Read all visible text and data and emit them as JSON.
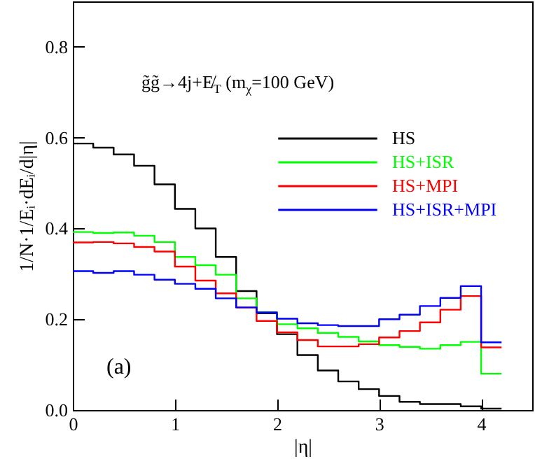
{
  "chart_data": {
    "type": "histogram",
    "xlabel": "|η|",
    "ylabel": "1/N·1/Eᵢ·dEᵢ/d|η|",
    "annotations": [
      "g̃g̃→4j+E̸$_{T}$   (m$_{χ}$=100 GeV)",
      "(a)"
    ],
    "bins": [
      0,
      0.2,
      0.4,
      0.6,
      0.8,
      1.0,
      1.2,
      1.4,
      1.6,
      1.8,
      2.0,
      2.2,
      2.4,
      2.6,
      2.8,
      3.0,
      3.2,
      3.4,
      3.6,
      3.8,
      4.0,
      4.2
    ],
    "xlim": [
      0,
      4.5
    ],
    "xticks": [
      0,
      1,
      2,
      3,
      4
    ],
    "ylim": [
      0,
      0.9
    ],
    "yticks": [
      {
        "value": 0,
        "label": "0.0"
      },
      0.2,
      0.4,
      0.6,
      0.8
    ],
    "legend": "top right",
    "line_style": "solid",
    "series": [
      {
        "name": "HS",
        "color": "#000000",
        "values": [
          0.587,
          0.578,
          0.563,
          0.538,
          0.497,
          0.443,
          0.4,
          0.337,
          0.262,
          0.213,
          0.167,
          0.121,
          0.087,
          0.063,
          0.046,
          0.031,
          0.018,
          0.013,
          0.013,
          0.008,
          0.003
        ]
      },
      {
        "name": "HS+ISR",
        "color": "#00ff00",
        "values": [
          0.392,
          0.39,
          0.391,
          0.384,
          0.37,
          0.337,
          0.319,
          0.298,
          0.246,
          0.215,
          0.189,
          0.18,
          0.17,
          0.161,
          0.151,
          0.143,
          0.139,
          0.135,
          0.143,
          0.15,
          0.08
        ]
      },
      {
        "name": "HS+MPI",
        "color": "#ff0000",
        "values": [
          0.369,
          0.37,
          0.367,
          0.359,
          0.349,
          0.316,
          0.285,
          0.257,
          0.226,
          0.196,
          0.171,
          0.154,
          0.14,
          0.14,
          0.145,
          0.16,
          0.174,
          0.193,
          0.221,
          0.251,
          0.138
        ]
      },
      {
        "name": "HS+ISR+MPI",
        "color": "#0000ff",
        "values": [
          0.306,
          0.302,
          0.306,
          0.298,
          0.287,
          0.278,
          0.267,
          0.246,
          0.226,
          0.215,
          0.201,
          0.191,
          0.187,
          0.185,
          0.185,
          0.2,
          0.21,
          0.229,
          0.247,
          0.273,
          0.149
        ]
      }
    ]
  }
}
